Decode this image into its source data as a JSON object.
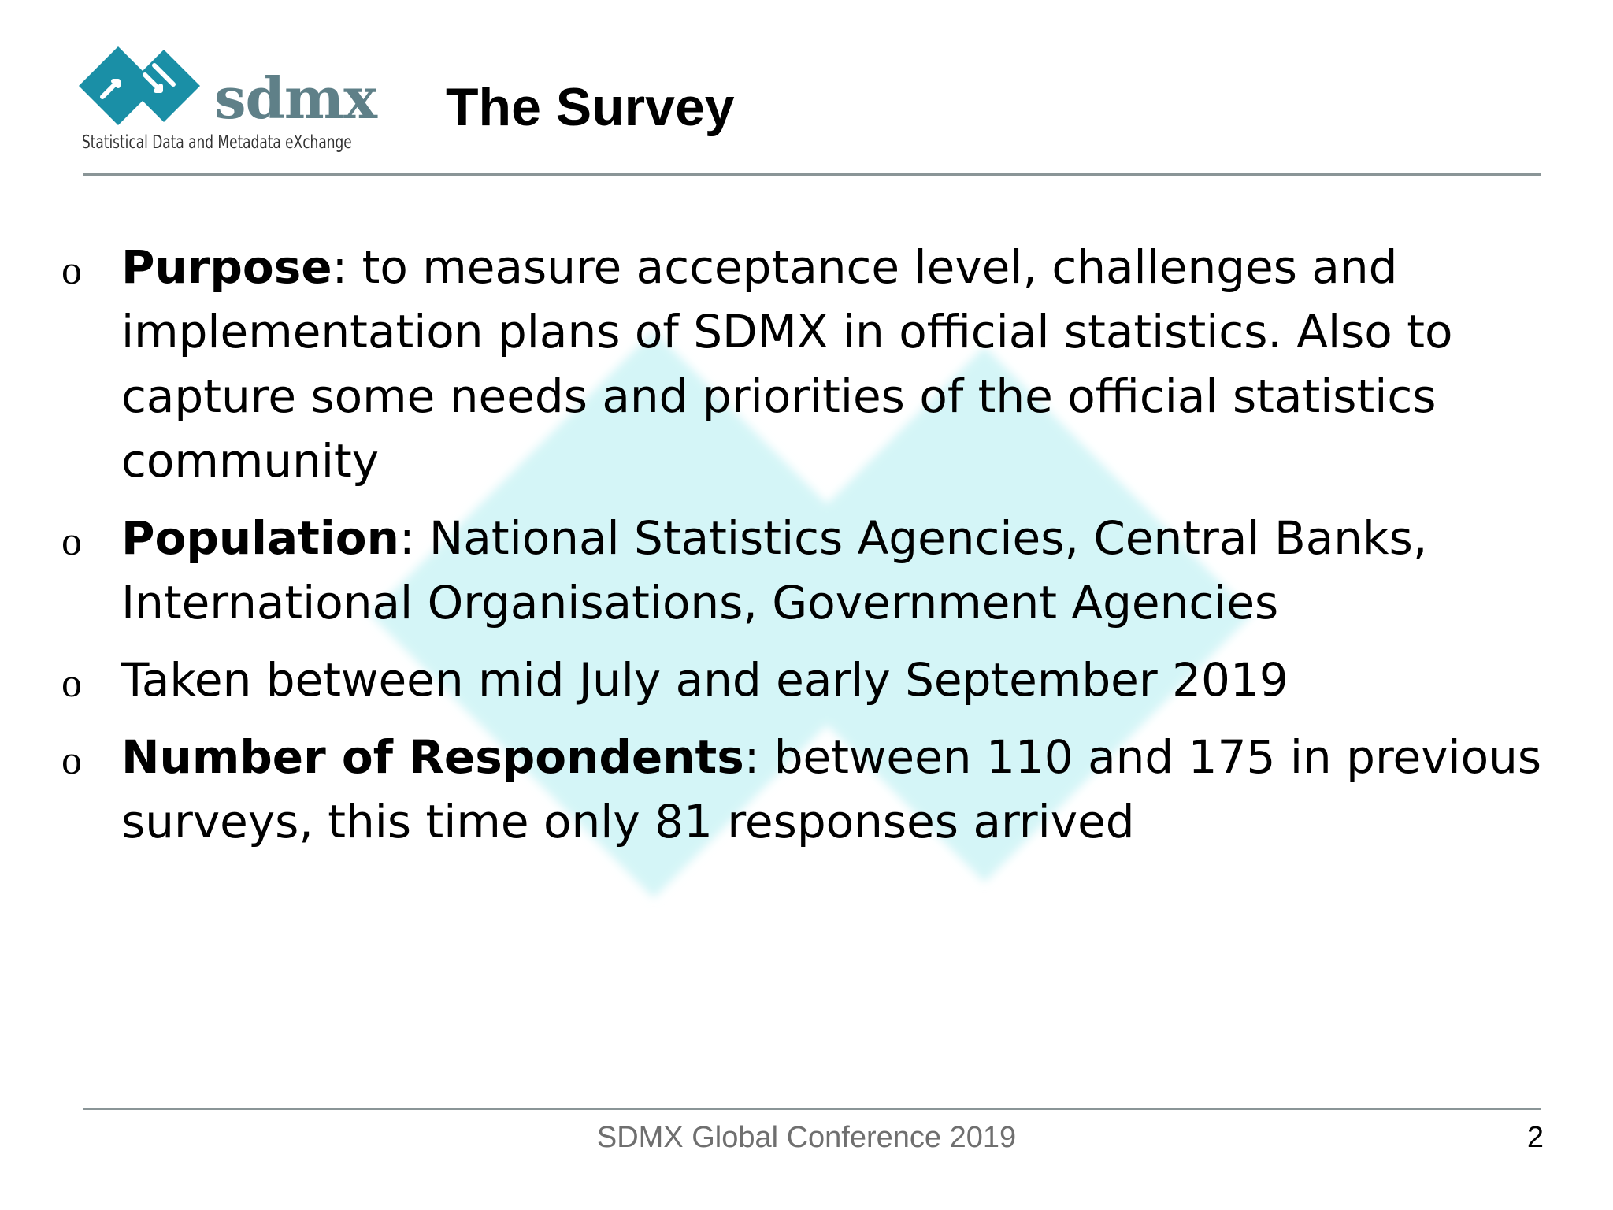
{
  "header": {
    "title": "The Survey",
    "logo": {
      "wordmark": "sdmx",
      "tagline": "Statistical Data and Metadata eXchange",
      "brand_color": "#1a8fa6"
    }
  },
  "bullets": [
    {
      "bold": "Purpose",
      "text": ": to measure  acceptance level, challenges and implementation plans of SDMX in official statistics. Also to capture some needs and priorities of the official statistics community"
    },
    {
      "bold": "Population",
      "text": ": National Statistics Agencies, Central Banks, International Organisations, Government Agencies"
    },
    {
      "bold": "",
      "text": "Taken between mid July and early September 2019"
    },
    {
      "bold": "Number of Respondents",
      "text": ": between 110 and 175 in previous surveys, this time only 81 responses arrived"
    }
  ],
  "bullet_marker": "o",
  "footer": {
    "text": "SDMX Global Conference 2019",
    "page_number": "2"
  },
  "colors": {
    "watermark": "#d4f5f7",
    "rule": "#8a9597",
    "footer_text": "#6f6f6f"
  }
}
